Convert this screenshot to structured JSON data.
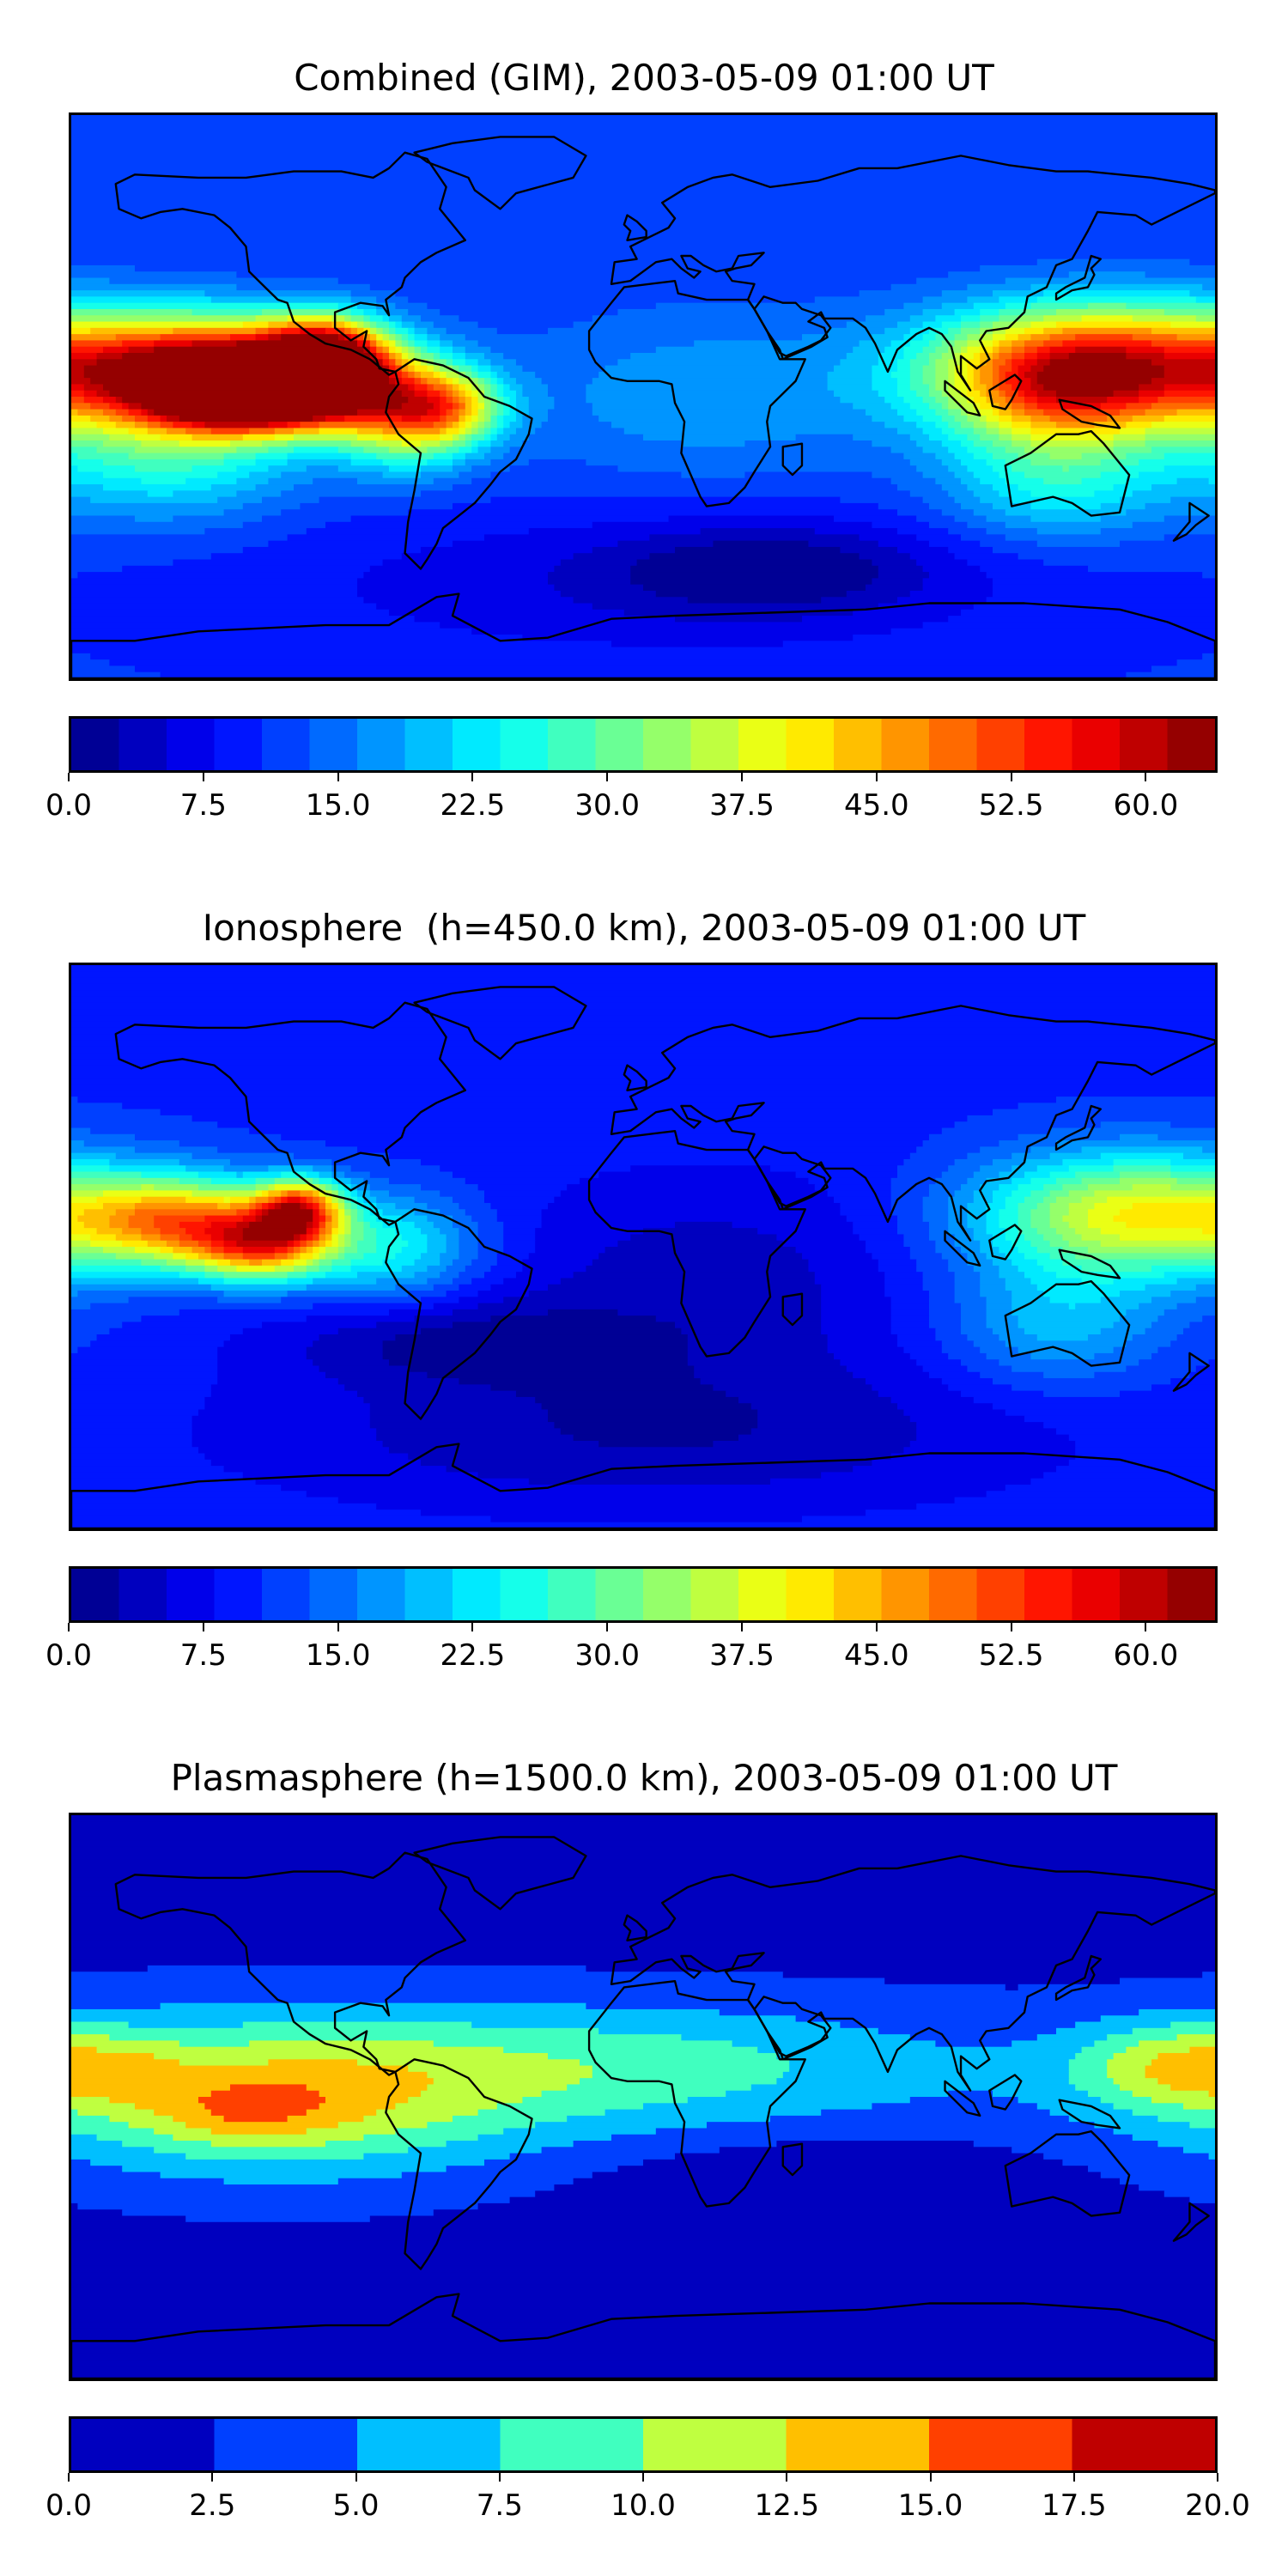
{
  "chart_data": [
    {
      "type": "heatmap",
      "title": "Combined (GIM), 2003-05-09 01:00 UT",
      "colorbar": {
        "range": [
          0.0,
          64.0
        ],
        "levels": 24,
        "tick_labels": [
          "0.0",
          "7.5",
          "15.0",
          "22.5",
          "30.0",
          "37.5",
          "45.0",
          "52.5",
          "60.0"
        ],
        "tick_values": [
          0.0,
          7.5,
          15.0,
          22.5,
          30.0,
          37.5,
          45.0,
          52.5,
          60.0
        ]
      },
      "features": [
        {
          "lon": -135,
          "lat": 8,
          "value": 60,
          "slon": 30,
          "slat": 12
        },
        {
          "lon": -100,
          "lat": 12,
          "value": 58,
          "slon": 14,
          "slat": 9
        },
        {
          "lon": -120,
          "lat": 0,
          "value": 55,
          "slon": 22,
          "slat": 8
        },
        {
          "lon": -75,
          "lat": -5,
          "value": 40,
          "slon": 16,
          "slat": 12
        },
        {
          "lon": -60,
          "lat": -3,
          "value": 30,
          "slon": 12,
          "slat": 8
        },
        {
          "lon": 150,
          "lat": 10,
          "value": 50,
          "slon": 40,
          "slat": 14
        },
        {
          "lon": 130,
          "lat": 0,
          "value": 32,
          "slon": 25,
          "slat": 15
        },
        {
          "lon": 130,
          "lat": -30,
          "value": 22,
          "slon": 25,
          "slat": 12
        },
        {
          "lon": -150,
          "lat": -20,
          "value": 25,
          "slon": 30,
          "slat": 14
        },
        {
          "lon": 20,
          "lat": 0,
          "value": 18,
          "slon": 45,
          "slat": 20
        },
        {
          "lon": 0,
          "lat": -60,
          "value": 6,
          "slon": 90,
          "slat": 18
        },
        {
          "lon": 40,
          "lat": -55,
          "value": 3,
          "slon": 35,
          "slat": 10
        }
      ],
      "base_value": 11
    },
    {
      "type": "heatmap",
      "title": "Ionosphere  (h=450.0 km), 2003-05-09 01:00 UT",
      "colorbar": {
        "range": [
          0.0,
          64.0
        ],
        "levels": 24,
        "tick_labels": [
          "0.0",
          "7.5",
          "15.0",
          "22.5",
          "30.0",
          "37.5",
          "45.0",
          "52.5",
          "60.0"
        ],
        "tick_values": [
          0.0,
          7.5,
          15.0,
          22.5,
          30.0,
          37.5,
          45.0,
          52.5,
          60.0
        ]
      },
      "features": [
        {
          "lon": -145,
          "lat": 8,
          "value": 42,
          "slon": 22,
          "slat": 10
        },
        {
          "lon": -108,
          "lat": 12,
          "value": 46,
          "slon": 10,
          "slat": 7
        },
        {
          "lon": -120,
          "lat": 0,
          "value": 40,
          "slon": 15,
          "slat": 8
        },
        {
          "lon": -80,
          "lat": 0,
          "value": 25,
          "slon": 20,
          "slat": 12
        },
        {
          "lon": 155,
          "lat": 10,
          "value": 40,
          "slon": 35,
          "slat": 14
        },
        {
          "lon": 130,
          "lat": -25,
          "value": 20,
          "slon": 25,
          "slat": 14
        },
        {
          "lon": -60,
          "lat": -30,
          "value": 3,
          "slon": 40,
          "slat": 10
        },
        {
          "lon": 20,
          "lat": -10,
          "value": 4,
          "slon": 50,
          "slat": 25
        },
        {
          "lon": 0,
          "lat": -60,
          "value": 3,
          "slon": 90,
          "slat": 18
        }
      ],
      "base_value": 10
    },
    {
      "type": "heatmap",
      "title": "Plasmasphere (h=1500.0 km), 2003-05-09 01:00 UT",
      "colorbar": {
        "range": [
          0.0,
          20.0
        ],
        "levels": 8,
        "tick_labels": [
          "0.0",
          "2.5",
          "5.0",
          "7.5",
          "10.0",
          "12.5",
          "15.0",
          "17.5",
          "20.0"
        ],
        "tick_values": [
          0.0,
          2.5,
          5.0,
          7.5,
          10.0,
          12.5,
          15.0,
          17.5,
          20.0
        ]
      },
      "features": [
        {
          "lon": -115,
          "lat": 0,
          "value": 11,
          "slon": 55,
          "slat": 18
        },
        {
          "lon": -125,
          "lat": -5,
          "value": 5,
          "slon": 20,
          "slat": 7
        },
        {
          "lon": -160,
          "lat": 8,
          "value": 3,
          "slon": 10,
          "slat": 6
        },
        {
          "lon": 0,
          "lat": 10,
          "value": 7,
          "slon": 70,
          "slat": 14
        },
        {
          "lon": 170,
          "lat": 10,
          "value": 9,
          "slon": 25,
          "slat": 10
        },
        {
          "lon": 60,
          "lat": -30,
          "value": -2,
          "slon": 40,
          "slat": 10
        }
      ],
      "base_value": 1.5,
      "lat_band": {
        "lat": 5,
        "value": 4,
        "slat": 22
      }
    }
  ]
}
